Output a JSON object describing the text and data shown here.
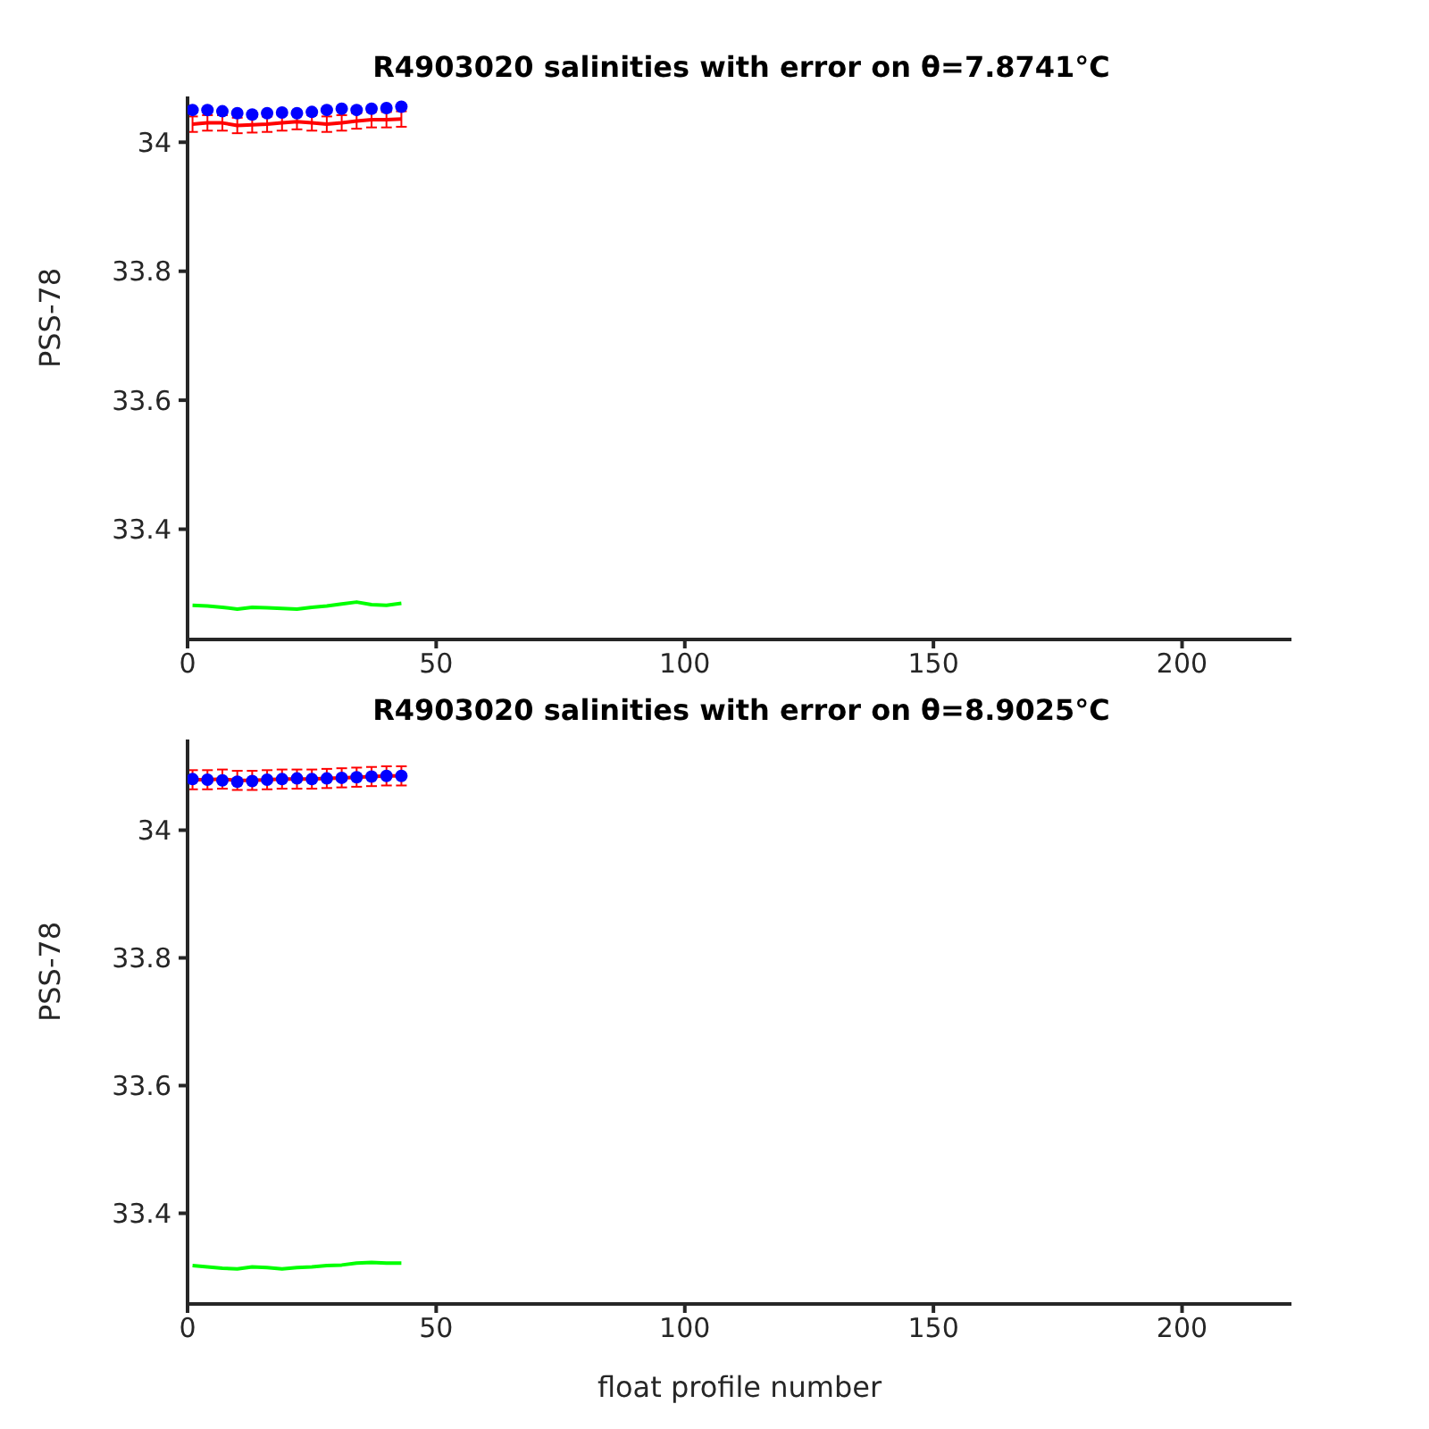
{
  "chart_data": [
    {
      "type": "line",
      "title": "R4903020 salinities with error on θ=7.8741°C",
      "ylabel": "PSS-78",
      "x": [
        1,
        4,
        7,
        10,
        13,
        16,
        19,
        22,
        25,
        28,
        31,
        34,
        37,
        40,
        43
      ],
      "xlim": [
        0,
        222
      ],
      "xticks": [
        0,
        50,
        100,
        150,
        200
      ],
      "ylim": [
        33.229,
        34.071
      ],
      "yticks": [
        33.4,
        33.6,
        33.8,
        34
      ],
      "series": [
        {
          "type": "scatter",
          "color": "#0000ff",
          "marker": "circle",
          "values": [
            34.05,
            34.05,
            34.048,
            34.045,
            34.043,
            34.045,
            34.046,
            34.045,
            34.047,
            34.05,
            34.052,
            34.05,
            34.052,
            34.053,
            34.055
          ]
        },
        {
          "color": "#ff0000",
          "marker": "none",
          "values": [
            34.028,
            34.03,
            34.03,
            34.026,
            34.027,
            34.028,
            34.03,
            34.032,
            34.03,
            34.028,
            34.03,
            34.033,
            34.035,
            34.035,
            34.036
          ],
          "errors": [
            0.012,
            0.012,
            0.012,
            0.012,
            0.012,
            0.012,
            0.012,
            0.012,
            0.012,
            0.012,
            0.012,
            0.012,
            0.012,
            0.012,
            0.012
          ]
        },
        {
          "color": "#00ff00",
          "marker": "none",
          "values": [
            33.282,
            33.281,
            33.279,
            33.276,
            33.279,
            33.278,
            33.277,
            33.276,
            33.279,
            33.281,
            33.284,
            33.287,
            33.283,
            33.282,
            33.285
          ]
        }
      ]
    },
    {
      "type": "line",
      "title": "R4903020 salinities with error on θ=8.9025°C",
      "ylabel": "PSS-78",
      "xlabel": "float profile number",
      "x": [
        1,
        4,
        7,
        10,
        13,
        16,
        19,
        22,
        25,
        28,
        31,
        34,
        37,
        40,
        43
      ],
      "xlim": [
        0,
        222
      ],
      "xticks": [
        0,
        50,
        100,
        150,
        200
      ],
      "ylim": [
        33.258,
        34.142
      ],
      "yticks": [
        33.4,
        33.6,
        33.8,
        34
      ],
      "series": [
        {
          "type": "scatter",
          "color": "#0000ff",
          "marker": "circle",
          "values": [
            34.08,
            34.079,
            34.078,
            34.076,
            34.077,
            34.079,
            34.08,
            34.081,
            34.08,
            34.081,
            34.082,
            34.083,
            34.084,
            34.085,
            34.085
          ]
        },
        {
          "color": "#ff0000",
          "marker": "none",
          "values": [
            34.079,
            34.079,
            34.08,
            34.078,
            34.078,
            34.079,
            34.08,
            34.08,
            34.08,
            34.081,
            34.082,
            34.083,
            34.084,
            34.085,
            34.085
          ],
          "errors": [
            0.015,
            0.015,
            0.015,
            0.015,
            0.015,
            0.015,
            0.015,
            0.015,
            0.015,
            0.015,
            0.015,
            0.015,
            0.015,
            0.015,
            0.015
          ]
        },
        {
          "color": "#00ff00",
          "marker": "none",
          "values": [
            33.318,
            33.316,
            33.314,
            33.313,
            33.316,
            33.315,
            33.313,
            33.315,
            33.316,
            33.318,
            33.319,
            33.322,
            33.323,
            33.322,
            33.322
          ]
        }
      ]
    }
  ]
}
